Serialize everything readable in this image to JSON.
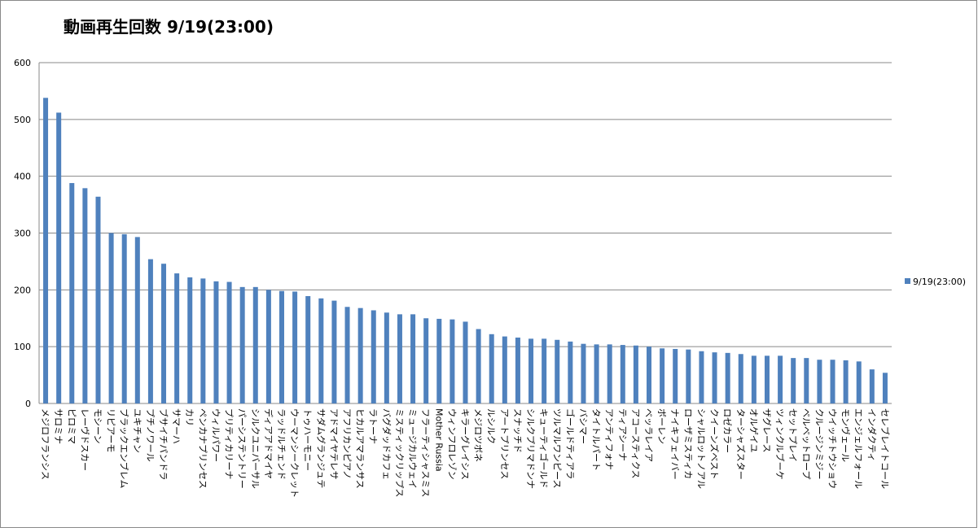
{
  "chart_data": {
    "type": "bar",
    "title": "動画再生回数  9/19(23:00)",
    "categories": [
      "メジロフランシス",
      "サロミナ",
      "ピロミマ",
      "レーヴドスカー",
      "モシーン",
      "リピアーモ",
      "ブラックエンブレム",
      "ユキチャン",
      "プチノワール",
      "ブサイチパンドラ",
      "サマーハ",
      "カリ",
      "ペンカナプリンセス",
      "ウィルパワー",
      "プリティカリーナ",
      "パーシステントリー",
      "シルクユニバーサル",
      "ディアアドマイヤ",
      "ラッドルチェンド",
      "ウーマンシークレット",
      "トゥハーモニー",
      "サダムグランジュテ",
      "アドマイヤテレサ",
      "アフリカンピアノ",
      "ヒカルアマランサス",
      "ラトーナ",
      "バグダッドカフェ",
      "ミスティックリップス",
      "ミュージカルウェイ",
      "フラーティシャスミス",
      "Mother Russia",
      "ウィンフロレゾン",
      "キラーグレイシス",
      "メジロツボネ",
      "ルシルク",
      "アートプリンセス",
      "スナッチド",
      "シルクプリマドンナ",
      "キューティゴールド",
      "ツルマルワンピース",
      "ゴールドティアラ",
      "バシマー",
      "タイトルパート",
      "アンティフォナ",
      "ティアシーナ",
      "アコースティクス",
      "ベッラレイア",
      "ボーレン",
      "ナイキフェイバー",
      "ローザミスティカ",
      "シャルロットノアル",
      "クイーンズベスト",
      "ロゼカラー",
      "ターシャズスター",
      "オルゲイユ",
      "ザグレース",
      "ツィンクルブーケ",
      "セットプレイ",
      "ベルベットロープ",
      "クルージンミジー",
      "ウイッチトウショウ",
      "モンヴェール",
      "エンジェルフォール",
      "インダクティ",
      "セレブレイトコール"
    ],
    "series": [
      {
        "name": "9/19(23:00)",
        "color": "#4f81bd",
        "values": [
          538,
          512,
          388,
          379,
          364,
          300,
          298,
          293,
          254,
          246,
          229,
          222,
          220,
          215,
          214,
          205,
          205,
          200,
          198,
          197,
          189,
          185,
          181,
          170,
          168,
          164,
          160,
          157,
          157,
          150,
          149,
          148,
          144,
          131,
          122,
          118,
          116,
          114,
          114,
          112,
          109,
          105,
          104,
          104,
          103,
          102,
          100,
          97,
          96,
          95,
          92,
          90,
          89,
          87,
          84,
          84,
          84,
          80,
          80,
          77,
          77,
          76,
          74,
          60,
          54
        ]
      }
    ],
    "ylim": [
      0,
      600
    ],
    "yticks": [
      0,
      100,
      200,
      300,
      400,
      500,
      600
    ],
    "grid": true,
    "legend": "right"
  }
}
